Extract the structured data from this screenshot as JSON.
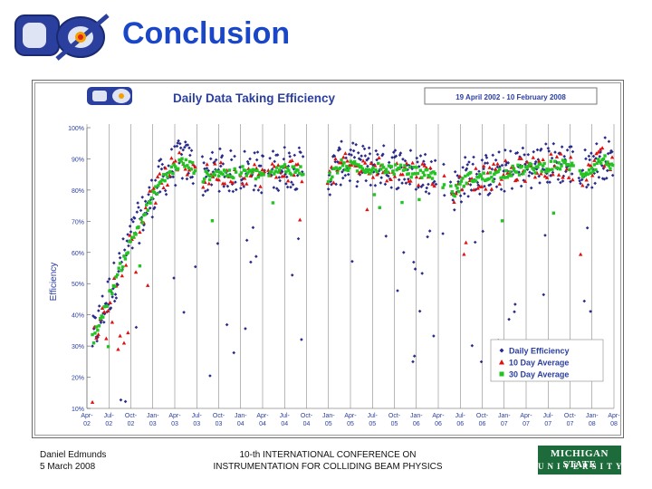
{
  "slide": {
    "title": "Conclusion",
    "footer_author": "Daniel Edmunds",
    "footer_date": "5 March 2008",
    "footer_conf1": "10-th INTERNATIONAL CONFERENCE ON",
    "footer_conf2": "INSTRUMENTATION FOR COLLIDING BEAM PHYSICS",
    "logo_text": "DØ",
    "msu_line1": "MICHIGAN STATE",
    "msu_line2": "UNIVERSITY"
  },
  "chart_data": {
    "type": "scatter",
    "title": "Daily Data Taking Efficiency",
    "date_range": "19 April 2002 - 10 February 2008",
    "ylabel": "Efficiency",
    "xlabel": "",
    "ylim": [
      10,
      100
    ],
    "yticks": [
      "10%",
      "20%",
      "30%",
      "40%",
      "50%",
      "60%",
      "70%",
      "80%",
      "90%",
      "100%"
    ],
    "xtick_labels": [
      [
        "Apr-",
        "02"
      ],
      [
        "Jul-",
        "02"
      ],
      [
        "Oct-",
        "02"
      ],
      [
        "Jan-",
        "03"
      ],
      [
        "Apr-",
        "03"
      ],
      [
        "Jul-",
        "03"
      ],
      [
        "Oct-",
        "03"
      ],
      [
        "Jan-",
        "04"
      ],
      [
        "Apr-",
        "04"
      ],
      [
        "Jul-",
        "04"
      ],
      [
        "Oct-",
        "04"
      ],
      [
        "Jan-",
        "05"
      ],
      [
        "Apr-",
        "05"
      ],
      [
        "Jul-",
        "05"
      ],
      [
        "Oct-",
        "05"
      ],
      [
        "Jan-",
        "06"
      ],
      [
        "Apr-",
        "06"
      ],
      [
        "Jul-",
        "06"
      ],
      [
        "Oct-",
        "06"
      ],
      [
        "Jan-",
        "07"
      ],
      [
        "Apr-",
        "07"
      ],
      [
        "Jul-",
        "07"
      ],
      [
        "Oct-",
        "07"
      ],
      [
        "Jan-",
        "08"
      ],
      [
        "Apr-",
        "08"
      ]
    ],
    "shutdowns": [
      [
        4.95,
        5.25
      ],
      [
        6.8,
        6.95
      ],
      [
        8.1,
        8.25
      ],
      [
        9.85,
        10.95
      ],
      [
        15.9,
        16.2
      ],
      [
        16.3,
        16.55
      ],
      [
        22.15,
        22.4
      ]
    ],
    "trend_anchors": [
      [
        0.3,
        32
      ],
      [
        0.8,
        42
      ],
      [
        1.3,
        51
      ],
      [
        1.8,
        60
      ],
      [
        2.3,
        68
      ],
      [
        2.8,
        75
      ],
      [
        3.3,
        82
      ],
      [
        3.8,
        86
      ],
      [
        4.3,
        89
      ],
      [
        4.9,
        87
      ],
      [
        5.3,
        84
      ],
      [
        5.9,
        86
      ],
      [
        6.7,
        85
      ],
      [
        7.1,
        86
      ],
      [
        7.7,
        85
      ],
      [
        8.4,
        85
      ],
      [
        9.0,
        87
      ],
      [
        9.8,
        86
      ],
      [
        11.0,
        84
      ],
      [
        11.6,
        88
      ],
      [
        12.6,
        87
      ],
      [
        13.6,
        87
      ],
      [
        14.6,
        86
      ],
      [
        15.8,
        85
      ],
      [
        16.7,
        79
      ],
      [
        17.3,
        84
      ],
      [
        18.3,
        84
      ],
      [
        19.3,
        86
      ],
      [
        20.3,
        87
      ],
      [
        21.3,
        88
      ],
      [
        22.0,
        88
      ],
      [
        22.5,
        85
      ],
      [
        23.0,
        87
      ],
      [
        23.5,
        90
      ],
      [
        23.9,
        88
      ]
    ],
    "legend": {
      "position": "bottom-right",
      "entries": [
        {
          "name": "Daily Efficiency",
          "color": "#2a2a8a",
          "marker": "diamond"
        },
        {
          "name": "10 Day Average",
          "color": "#e01010",
          "marker": "triangle"
        },
        {
          "name": "30 Day Average",
          "color": "#22c322",
          "marker": "square"
        }
      ]
    }
  }
}
